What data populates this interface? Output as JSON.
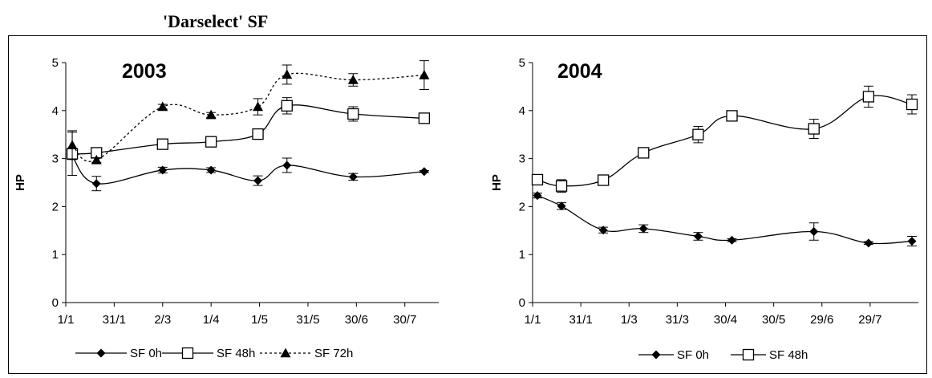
{
  "figure": {
    "title": "'Darselect' SF"
  },
  "chart_data": [
    {
      "type": "line",
      "title": "2003",
      "xlabel": "",
      "ylabel": "HP",
      "ylim": [
        0,
        5
      ],
      "yticks": [
        "0",
        "1",
        "2",
        "3",
        "4",
        "5"
      ],
      "xlim": [
        "2003-01-01",
        "2003-08-20"
      ],
      "xticks": [
        {
          "label": "1/1",
          "date": "2003-01-01"
        },
        {
          "label": "31/1",
          "date": "2003-01-31"
        },
        {
          "label": "2/3",
          "date": "2003-03-02"
        },
        {
          "label": "1/4",
          "date": "2003-04-01"
        },
        {
          "label": "1/5",
          "date": "2003-05-01"
        },
        {
          "label": "31/5",
          "date": "2003-05-31"
        },
        {
          "label": "30/6",
          "date": "2003-06-30"
        },
        {
          "label": "30/7",
          "date": "2003-07-30"
        }
      ],
      "series": [
        {
          "name": "SF 0h",
          "marker": "diamond-filled",
          "line": "solid",
          "points": [
            {
              "x": "2003-01-05",
              "y": 3.05,
              "err": 0.05
            },
            {
              "x": "2003-01-20",
              "y": 2.48,
              "err": 0.15
            },
            {
              "x": "2003-03-02",
              "y": 2.76,
              "err": 0.06
            },
            {
              "x": "2003-04-01",
              "y": 2.76,
              "err": 0.05
            },
            {
              "x": "2003-04-30",
              "y": 2.54,
              "err": 0.1
            },
            {
              "x": "2003-05-18",
              "y": 2.86,
              "err": 0.15
            },
            {
              "x": "2003-06-28",
              "y": 2.62,
              "err": 0.07
            },
            {
              "x": "2003-08-11",
              "y": 2.73,
              "err": 0.02
            }
          ]
        },
        {
          "name": "SF 48h",
          "marker": "square-open",
          "line": "solid",
          "points": [
            {
              "x": "2003-01-05",
              "y": 3.1,
              "err": 0.45
            },
            {
              "x": "2003-01-20",
              "y": 3.12,
              "err": 0.1
            },
            {
              "x": "2003-03-02",
              "y": 3.3,
              "err": 0.05
            },
            {
              "x": "2003-04-01",
              "y": 3.35,
              "err": 0.05
            },
            {
              "x": "2003-04-30",
              "y": 3.51,
              "err": 0.03
            },
            {
              "x": "2003-05-18",
              "y": 4.1,
              "err": 0.17
            },
            {
              "x": "2003-06-28",
              "y": 3.93,
              "err": 0.15
            },
            {
              "x": "2003-08-11",
              "y": 3.84,
              "err": 0.03
            }
          ]
        },
        {
          "name": "SF 72h",
          "marker": "triangle-filled",
          "line": "dotted",
          "points": [
            {
              "x": "2003-01-05",
              "y": 3.28,
              "err": 0.3
            },
            {
              "x": "2003-01-20",
              "y": 2.97,
              "err": 0.05
            },
            {
              "x": "2003-03-02",
              "y": 4.08,
              "err": 0.05
            },
            {
              "x": "2003-04-01",
              "y": 3.91,
              "err": 0.05
            },
            {
              "x": "2003-04-30",
              "y": 4.08,
              "err": 0.17
            },
            {
              "x": "2003-05-18",
              "y": 4.75,
              "err": 0.2
            },
            {
              "x": "2003-06-28",
              "y": 4.64,
              "err": 0.13
            },
            {
              "x": "2003-08-11",
              "y": 4.74,
              "err": 0.3
            }
          ]
        }
      ],
      "legend": "bottom"
    },
    {
      "type": "line",
      "title": "2004",
      "xlabel": "",
      "ylabel": "HP",
      "ylim": [
        0,
        5
      ],
      "yticks": [
        "0",
        "1",
        "2",
        "3",
        "4",
        "5"
      ],
      "xlim": [
        "2004-01-01",
        "2004-08-28"
      ],
      "xticks": [
        {
          "label": "1/1",
          "date": "2004-01-01"
        },
        {
          "label": "31/1",
          "date": "2004-01-31"
        },
        {
          "label": "1/3",
          "date": "2004-03-01"
        },
        {
          "label": "31/3",
          "date": "2004-03-31"
        },
        {
          "label": "30/4",
          "date": "2004-04-30"
        },
        {
          "label": "30/5",
          "date": "2004-05-30"
        },
        {
          "label": "29/6",
          "date": "2004-06-29"
        },
        {
          "label": "29/7",
          "date": "2004-07-29"
        }
      ],
      "series": [
        {
          "name": "SF 0h",
          "marker": "diamond-filled",
          "line": "solid",
          "points": [
            {
              "x": "2004-01-04",
              "y": 2.23,
              "err": 0.05
            },
            {
              "x": "2004-01-19",
              "y": 2.01,
              "err": 0.07
            },
            {
              "x": "2004-02-14",
              "y": 1.51,
              "err": 0.06
            },
            {
              "x": "2004-03-10",
              "y": 1.54,
              "err": 0.08
            },
            {
              "x": "2004-04-13",
              "y": 1.38,
              "err": 0.08
            },
            {
              "x": "2004-05-04",
              "y": 1.3,
              "err": 0.03
            },
            {
              "x": "2004-06-24",
              "y": 1.48,
              "err": 0.18
            },
            {
              "x": "2004-07-28",
              "y": 1.24,
              "err": 0.03
            },
            {
              "x": "2004-08-24",
              "y": 1.28,
              "err": 0.1
            }
          ]
        },
        {
          "name": "SF 48h",
          "marker": "square-open",
          "line": "solid",
          "points": [
            {
              "x": "2004-01-04",
              "y": 2.56,
              "err": 0.06
            },
            {
              "x": "2004-01-19",
              "y": 2.43,
              "err": 0.13
            },
            {
              "x": "2004-02-14",
              "y": 2.55,
              "err": 0.08
            },
            {
              "x": "2004-03-10",
              "y": 3.12,
              "err": 0.03
            },
            {
              "x": "2004-04-13",
              "y": 3.5,
              "err": 0.17
            },
            {
              "x": "2004-05-04",
              "y": 3.89,
              "err": 0.08
            },
            {
              "x": "2004-06-24",
              "y": 3.62,
              "err": 0.2
            },
            {
              "x": "2004-07-28",
              "y": 4.29,
              "err": 0.22
            },
            {
              "x": "2004-08-24",
              "y": 4.13,
              "err": 0.2
            }
          ]
        }
      ],
      "legend": "bottom"
    }
  ]
}
